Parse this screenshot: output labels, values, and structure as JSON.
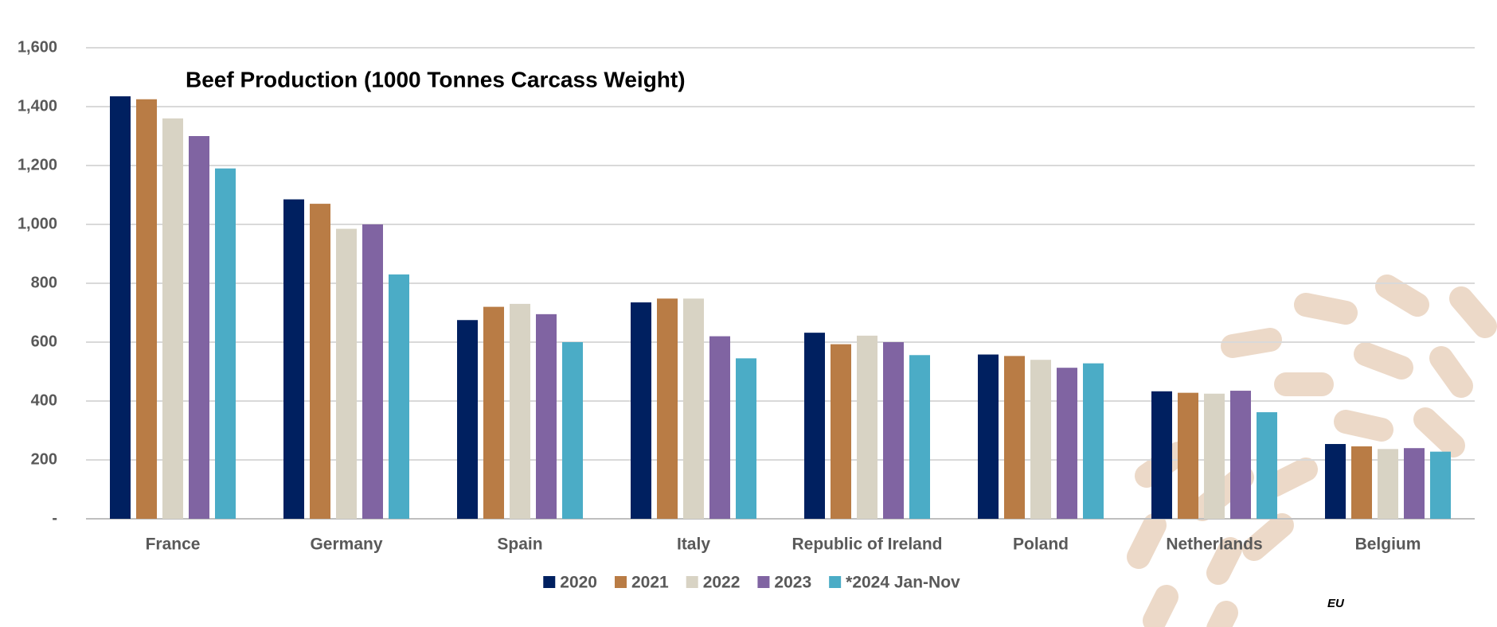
{
  "chart_data": {
    "type": "bar",
    "title": "Beef Production (1000 Tonnes Carcass Weight)",
    "categories": [
      "France",
      "Germany",
      "Spain",
      "Italy",
      "Republic of Ireland",
      "Poland",
      "Netherlands",
      "Belgium"
    ],
    "series": [
      {
        "name": "2020",
        "color": "#002060",
        "values": [
          1435,
          1085,
          675,
          735,
          632,
          558,
          433,
          254
        ]
      },
      {
        "name": "2021",
        "color": "#b97c45",
        "values": [
          1425,
          1070,
          720,
          748,
          593,
          553,
          428,
          246
        ]
      },
      {
        "name": "2022",
        "color": "#d8d3c4",
        "values": [
          1360,
          985,
          730,
          748,
          622,
          540,
          425,
          237
        ]
      },
      {
        "name": "2023",
        "color": "#8064a2",
        "values": [
          1300,
          1000,
          695,
          620,
          600,
          513,
          435,
          240
        ]
      },
      {
        "name": "*2024 Jan-Nov",
        "color": "#4bacc6",
        "values": [
          1190,
          830,
          600,
          545,
          556,
          528,
          362,
          228
        ]
      }
    ],
    "ylim": [
      0,
      1600
    ],
    "yticks": [
      {
        "value": 0,
        "label": "-"
      },
      200,
      400,
      600,
      800,
      {
        "value": 1000,
        "label": "1,000"
      },
      {
        "value": 1200,
        "label": "1,200"
      },
      {
        "value": 1400,
        "label": "1,400"
      },
      {
        "value": 1600,
        "label": "1,600"
      }
    ],
    "grid": true,
    "legend": "bottom",
    "note": "EU"
  }
}
